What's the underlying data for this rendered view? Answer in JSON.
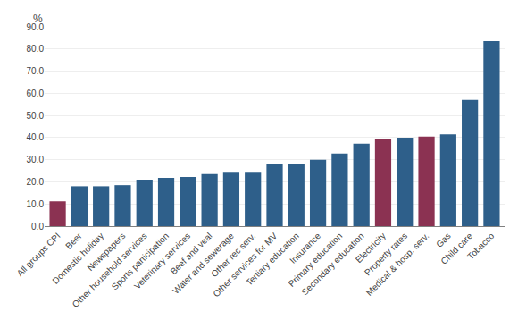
{
  "chart_data": {
    "type": "bar",
    "categories": [
      "All groups CPI",
      "Beer",
      "Domestic holiday",
      "Newspapers",
      "Other household services",
      "Sports participation",
      "Veterinary services",
      "Beef and veal",
      "Water and sewerage",
      "Other rec serv.",
      "Other services for MV",
      "Tertiary education",
      "Insurance",
      "Primary education",
      "Secondary education",
      "Electricity",
      "Property rates",
      "Medical & hosp. serv.",
      "Gas",
      "Child care",
      "Tobacco"
    ],
    "values": [
      11.2,
      18.0,
      18.0,
      18.5,
      21.0,
      21.8,
      22.2,
      23.5,
      24.5,
      24.5,
      27.8,
      28.3,
      30.0,
      32.8,
      37.2,
      39.5,
      40.0,
      40.5,
      41.5,
      57.0,
      83.5
    ],
    "colors": [
      "#8B3252",
      "#2E5F8A",
      "#2E5F8A",
      "#2E5F8A",
      "#2E5F8A",
      "#2E5F8A",
      "#2E5F8A",
      "#2E5F8A",
      "#2E5F8A",
      "#2E5F8A",
      "#2E5F8A",
      "#2E5F8A",
      "#2E5F8A",
      "#2E5F8A",
      "#2E5F8A",
      "#8B3252",
      "#2E5F8A",
      "#8B3252",
      "#2E5F8A",
      "#2E5F8A",
      "#2E5F8A"
    ],
    "annotations": [
      "%"
    ],
    "ylim": [
      0,
      90.0
    ],
    "yticks": [
      {
        "value": 0.0,
        "label": "0.0"
      },
      {
        "value": 10.0,
        "label": "10.0"
      },
      {
        "value": 20.0,
        "label": "20.0"
      },
      {
        "value": 30.0,
        "label": "30.0"
      },
      {
        "value": 40.0,
        "label": "40.0"
      },
      {
        "value": 50.0,
        "label": "50.0"
      },
      {
        "value": 60.0,
        "label": "60.0"
      },
      {
        "value": 70.0,
        "label": "70.0"
      },
      {
        "value": 80.0,
        "label": "80.0"
      },
      {
        "value": 90.0,
        "label": "90.0"
      }
    ],
    "grid": true
  }
}
